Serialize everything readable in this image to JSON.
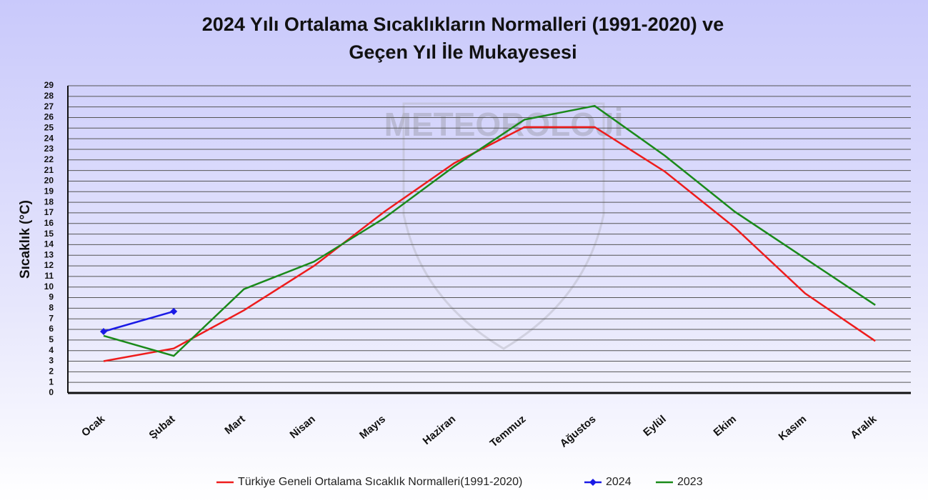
{
  "chart_data": {
    "type": "line",
    "title_lines": [
      "2024 Yılı Ortalama Sıcaklıkların Normalleri (1991-2020) ve",
      "Geçen Yıl İle Mukayesesi"
    ],
    "watermark": "METEOROLOJİ",
    "y_label": "Sıcaklık (°C)",
    "categories": [
      "Ocak",
      "Şubat",
      "Mart",
      "Nisan",
      "Mayıs",
      "Haziran",
      "Temmuz",
      "Ağustos",
      "Eylül",
      "Ekim",
      "Kasım",
      "Aralık"
    ],
    "series": [
      {
        "name": "Türkiye Geneli Ortalama Sıcaklık Normalleri(1991-2020)",
        "color": "#ee1c1c",
        "marker": false,
        "values": [
          3.0,
          4.2,
          7.8,
          12.0,
          17.1,
          21.7,
          25.1,
          25.1,
          20.9,
          15.6,
          9.4,
          4.9
        ]
      },
      {
        "name": "2024",
        "color": "#1a1ae6",
        "marker": true,
        "values": [
          5.8,
          7.7,
          null,
          null,
          null,
          null,
          null,
          null,
          null,
          null,
          null,
          null
        ]
      },
      {
        "name": "2023",
        "color": "#1a8a1a",
        "marker": false,
        "values": [
          5.4,
          3.5,
          9.8,
          12.4,
          16.5,
          21.4,
          25.8,
          27.1,
          22.4,
          17.1,
          12.7,
          8.3
        ]
      }
    ],
    "ylim": [
      0,
      29
    ],
    "yticks": [
      0,
      1,
      2,
      3,
      4,
      5,
      6,
      7,
      8,
      9,
      10,
      11,
      12,
      13,
      14,
      15,
      16,
      17,
      18,
      19,
      20,
      21,
      22,
      23,
      24,
      25,
      26,
      27,
      28,
      29
    ],
    "grid": true,
    "legend": "bottom"
  }
}
